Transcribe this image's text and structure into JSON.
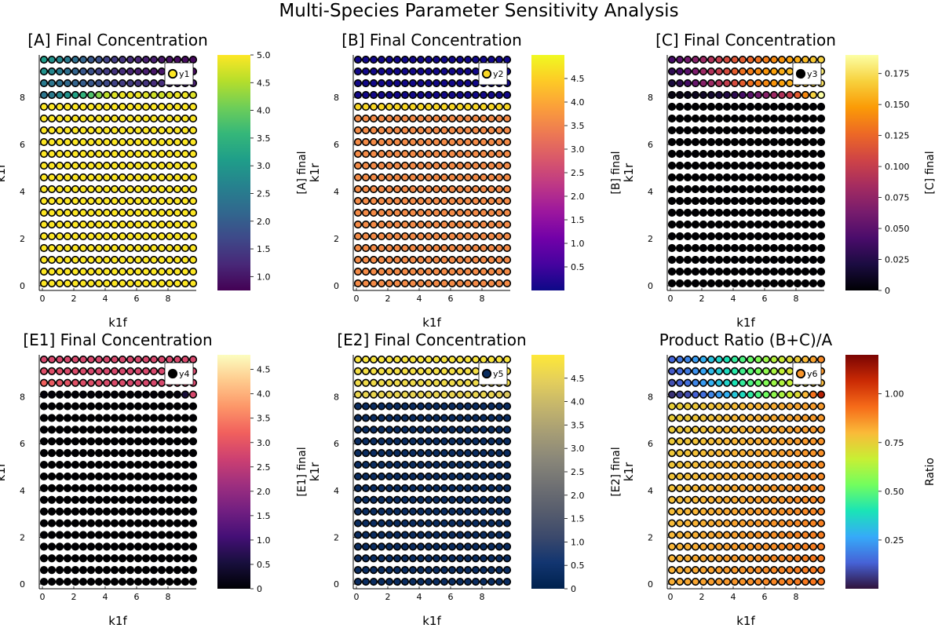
{
  "figure": {
    "title": "Multi-Species Parameter Sensitivity Analysis"
  },
  "chart_data": [
    {
      "type": "scatter",
      "title": "[A] Final Concentration",
      "xlabel": "k1f",
      "ylabel": "k1r",
      "colorbar_label": "[A] final",
      "legend": "y1",
      "colormap": "viridis",
      "clim": [
        0.75,
        5.0
      ],
      "colorbar_ticks": [
        "1.0",
        "1.5",
        "2.0",
        "2.5",
        "3.0",
        "3.5",
        "4.0",
        "4.5",
        "5.0"
      ],
      "colorbar_tick_values": [
        1.0,
        1.5,
        2.0,
        2.5,
        3.0,
        3.5,
        4.0,
        4.5,
        5.0
      ],
      "xlim": [
        -0.2,
        9.8
      ],
      "ylim": [
        -0.2,
        9.8
      ],
      "xticks": [
        "0",
        "2",
        "4",
        "6",
        "8"
      ],
      "yticks": [
        "0",
        "2",
        "4",
        "6",
        "8"
      ],
      "x": [
        0.1,
        0.6,
        1.1,
        1.6,
        2.1,
        2.6,
        3.1,
        3.6,
        4.1,
        4.6,
        5.1,
        5.6,
        6.1,
        6.6,
        7.1,
        7.6,
        8.1,
        8.6,
        9.1,
        9.6
      ],
      "y": [
        0.1,
        0.6,
        1.1,
        1.6,
        2.1,
        2.6,
        3.1,
        3.6,
        4.1,
        4.6,
        5.1,
        5.6,
        6.1,
        6.6,
        7.1,
        7.6,
        8.1,
        8.6,
        9.1,
        9.6
      ],
      "grid_note": "20 x 20 grid of points; rows below y=8.1 are uniformly about 5.0",
      "upper_rows": {
        "y": [
          8.1,
          8.6,
          9.1,
          9.6
        ],
        "values": [
          [
            2.4,
            2.5,
            2.7,
            2.9,
            3.2,
            3.5,
            3.8,
            4.2,
            4.6,
            4.8,
            4.9,
            4.9,
            4.9,
            4.8,
            4.7,
            4.7,
            4.8,
            4.9,
            4.9,
            4.8
          ],
          [
            2.5,
            2.4,
            2.3,
            2.2,
            2.1,
            2.0,
            1.9,
            1.8,
            1.7,
            1.6,
            1.5,
            1.5,
            1.4,
            1.4,
            1.3,
            1.3,
            1.2,
            1.2,
            1.2,
            1.1
          ],
          [
            2.9,
            2.7,
            2.5,
            2.3,
            2.1,
            1.9,
            1.8,
            1.6,
            1.5,
            1.4,
            1.3,
            1.2,
            1.1,
            1.1,
            1.0,
            1.0,
            0.9,
            0.9,
            0.9,
            0.85
          ],
          [
            3.1,
            2.9,
            2.7,
            2.5,
            2.3,
            2.1,
            1.9,
            1.8,
            1.6,
            1.5,
            1.4,
            1.3,
            1.2,
            1.1,
            1.1,
            1.0,
            0.95,
            0.9,
            0.88,
            0.85
          ]
        ]
      },
      "base_value": 5.0
    },
    {
      "type": "scatter",
      "title": "[B] Final Concentration",
      "xlabel": "k1f",
      "ylabel": "k1r",
      "colorbar_label": "[B] final",
      "legend": "y2",
      "colormap": "plasma",
      "clim": [
        0.0,
        5.0
      ],
      "colorbar_ticks": [
        "0.5",
        "1.0",
        "1.5",
        "2.0",
        "2.5",
        "3.0",
        "3.5",
        "4.0",
        "4.5"
      ],
      "colorbar_tick_values": [
        0.5,
        1.0,
        1.5,
        2.0,
        2.5,
        3.0,
        3.5,
        4.0,
        4.5
      ],
      "xlim": [
        -0.2,
        9.8
      ],
      "ylim": [
        -0.2,
        9.8
      ],
      "xticks": [
        "0",
        "2",
        "4",
        "6",
        "8"
      ],
      "yticks": [
        "0",
        "2",
        "4",
        "6",
        "8"
      ],
      "upper_rows": {
        "y": [
          8.1,
          8.6,
          9.1,
          9.6
        ],
        "values": [
          [
            0.05,
            0.05,
            0.05,
            0.05,
            0.05,
            0.05,
            0.05,
            0.05,
            0.05,
            0.05,
            0.05,
            0.05,
            0.05,
            0.05,
            0.05,
            0.05,
            0.05,
            0.05,
            0.05,
            0.05
          ],
          [
            0.05,
            0.05,
            0.05,
            0.05,
            0.05,
            0.05,
            0.05,
            0.05,
            0.05,
            0.05,
            0.05,
            0.05,
            0.05,
            0.05,
            0.05,
            0.05,
            0.05,
            0.05,
            0.05,
            0.05
          ],
          [
            0.05,
            0.05,
            0.05,
            0.05,
            0.05,
            0.05,
            0.05,
            0.05,
            0.05,
            0.05,
            0.05,
            0.05,
            0.05,
            0.05,
            0.05,
            0.05,
            0.05,
            0.05,
            0.05,
            0.05
          ],
          [
            0.05,
            0.05,
            0.05,
            0.05,
            0.05,
            0.05,
            0.05,
            0.05,
            0.05,
            0.05,
            0.05,
            0.05,
            0.05,
            0.05,
            0.05,
            0.05,
            0.05,
            0.05,
            0.05,
            0.05
          ]
        ]
      },
      "base_value": 3.6,
      "top_regular_row_value": 4.6
    },
    {
      "type": "scatter",
      "title": "[C] Final Concentration",
      "xlabel": "k1f",
      "ylabel": "k1r",
      "colorbar_label": "[C] final",
      "legend": "y3",
      "colormap": "inferno",
      "clim": [
        0.0,
        0.19
      ],
      "colorbar_ticks": [
        "0",
        "0.025",
        "0.050",
        "0.075",
        "0.100",
        "0.125",
        "0.150",
        "0.175"
      ],
      "colorbar_tick_values": [
        0,
        0.025,
        0.05,
        0.075,
        0.1,
        0.125,
        0.15,
        0.175
      ],
      "xlim": [
        -0.2,
        9.8
      ],
      "ylim": [
        -0.2,
        9.8
      ],
      "xticks": [
        "0",
        "2",
        "4",
        "6",
        "8"
      ],
      "yticks": [
        "0",
        "2",
        "4",
        "6",
        "8"
      ],
      "upper_rows": {
        "y": [
          8.1,
          8.6,
          9.1,
          9.6
        ],
        "values": [
          [
            0.005,
            0.006,
            0.008,
            0.01,
            0.013,
            0.016,
            0.02,
            0.025,
            0.03,
            0.04,
            0.05,
            0.06,
            0.07,
            0.08,
            0.09,
            0.1,
            0.12,
            0.14,
            0.17,
            0.19
          ],
          [
            0.02,
            0.03,
            0.04,
            0.055,
            0.07,
            0.08,
            0.09,
            0.1,
            0.11,
            0.12,
            0.13,
            0.135,
            0.14,
            0.145,
            0.15,
            0.155,
            0.16,
            0.165,
            0.17,
            0.175
          ],
          [
            0.03,
            0.04,
            0.05,
            0.065,
            0.08,
            0.09,
            0.1,
            0.11,
            0.12,
            0.13,
            0.135,
            0.14,
            0.145,
            0.15,
            0.155,
            0.16,
            0.165,
            0.17,
            0.175,
            0.18
          ],
          [
            0.04,
            0.05,
            0.06,
            0.07,
            0.08,
            0.09,
            0.1,
            0.11,
            0.115,
            0.12,
            0.125,
            0.13,
            0.135,
            0.14,
            0.145,
            0.15,
            0.155,
            0.16,
            0.165,
            0.17
          ]
        ]
      },
      "base_value": 0.0
    },
    {
      "type": "scatter",
      "title": "[E1] Final Concentration",
      "xlabel": "k1f",
      "ylabel": "k1r",
      "colorbar_label": "[E1] final",
      "legend": "y4",
      "colormap": "magma",
      "clim": [
        0.0,
        4.8
      ],
      "colorbar_ticks": [
        "0",
        "0.5",
        "1.0",
        "1.5",
        "2.0",
        "2.5",
        "3.0",
        "3.5",
        "4.0",
        "4.5"
      ],
      "colorbar_tick_values": [
        0,
        0.5,
        1.0,
        1.5,
        2.0,
        2.5,
        3.0,
        3.5,
        4.0,
        4.5
      ],
      "xlim": [
        -0.2,
        9.8
      ],
      "ylim": [
        -0.2,
        9.8
      ],
      "xticks": [
        "0",
        "2",
        "4",
        "6",
        "8"
      ],
      "yticks": [
        "0",
        "2",
        "4",
        "6",
        "8"
      ],
      "upper_rows": {
        "y": [
          8.1,
          8.6,
          9.1,
          9.6
        ],
        "values": [
          [
            0.05,
            0.05,
            0.05,
            0.05,
            0.05,
            0.05,
            0.05,
            0.05,
            0.05,
            0.05,
            0.05,
            0.05,
            0.05,
            0.05,
            0.05,
            0.05,
            0.05,
            0.1,
            0.5,
            2.8
          ],
          [
            3.2,
            3.1,
            3.0,
            3.0,
            2.95,
            2.9,
            2.9,
            2.9,
            2.85,
            2.85,
            2.85,
            2.8,
            2.8,
            2.8,
            2.8,
            2.8,
            2.8,
            2.8,
            2.8,
            2.8
          ],
          [
            2.9,
            2.9,
            2.9,
            2.85,
            2.85,
            2.85,
            2.8,
            2.8,
            2.8,
            2.8,
            2.8,
            2.8,
            2.8,
            2.8,
            2.8,
            2.8,
            2.8,
            2.8,
            2.8,
            2.8
          ],
          [
            2.8,
            2.8,
            2.8,
            2.8,
            2.8,
            2.8,
            2.8,
            2.8,
            2.8,
            2.8,
            2.8,
            2.8,
            2.8,
            2.8,
            2.8,
            2.8,
            2.8,
            2.8,
            2.8,
            2.8
          ]
        ]
      },
      "base_value": 0.0
    },
    {
      "type": "scatter",
      "title": "[E2] Final Concentration",
      "xlabel": "k1f",
      "ylabel": "k1r",
      "colorbar_label": "[E2] final",
      "legend": "y5",
      "colormap": "cividis",
      "clim": [
        0.0,
        5.0
      ],
      "colorbar_ticks": [
        "0",
        "0.5",
        "1.0",
        "1.5",
        "2.0",
        "2.5",
        "3.0",
        "3.5",
        "4.0",
        "4.5"
      ],
      "colorbar_tick_values": [
        0,
        0.5,
        1.0,
        1.5,
        2.0,
        2.5,
        3.0,
        3.5,
        4.0,
        4.5
      ],
      "xlim": [
        -0.2,
        9.8
      ],
      "ylim": [
        -0.2,
        9.8
      ],
      "xticks": [
        "0",
        "2",
        "4",
        "6",
        "8"
      ],
      "yticks": [
        "0",
        "2",
        "4",
        "6",
        "8"
      ],
      "upper_rows": {
        "y": [
          8.1,
          8.6,
          9.1,
          9.6
        ],
        "values": [
          [
            4.6,
            4.6,
            4.6,
            4.6,
            4.6,
            4.6,
            4.6,
            4.6,
            4.6,
            4.6,
            4.6,
            4.6,
            4.6,
            4.6,
            4.6,
            4.6,
            4.6,
            4.6,
            4.5,
            4.3
          ],
          [
            4.7,
            4.7,
            4.7,
            4.7,
            4.7,
            4.7,
            4.7,
            4.7,
            4.7,
            4.7,
            4.7,
            4.7,
            4.7,
            4.7,
            4.7,
            4.7,
            4.7,
            4.7,
            4.7,
            4.7
          ],
          [
            4.8,
            4.8,
            4.8,
            4.8,
            4.8,
            4.8,
            4.8,
            4.8,
            4.8,
            4.8,
            4.8,
            4.8,
            4.8,
            4.8,
            4.8,
            4.8,
            4.8,
            4.8,
            4.8,
            4.8
          ],
          [
            4.9,
            4.9,
            4.9,
            4.9,
            4.9,
            4.9,
            4.9,
            4.9,
            4.9,
            4.9,
            4.9,
            4.9,
            4.9,
            4.9,
            4.9,
            4.9,
            4.9,
            4.9,
            4.9,
            4.9
          ]
        ]
      },
      "base_value": 0.3
    },
    {
      "type": "scatter",
      "title": "Product Ratio (B+C)/A",
      "xlabel": "k1f",
      "ylabel": "k1r",
      "colorbar_label": "Ratio",
      "legend": "y6",
      "colormap": "turbo",
      "clim": [
        0.0,
        1.2
      ],
      "colorbar_ticks": [
        "0.25",
        "0.50",
        "0.75",
        "1.00"
      ],
      "colorbar_tick_values": [
        0.25,
        0.5,
        0.75,
        1.0
      ],
      "xlim": [
        -0.2,
        9.8
      ],
      "ylim": [
        -0.2,
        9.8
      ],
      "xticks": [
        "0",
        "2",
        "4",
        "6",
        "8"
      ],
      "yticks": [
        "0",
        "2",
        "4",
        "6",
        "8"
      ],
      "upper_rows": {
        "y": [
          8.1,
          8.6,
          9.1,
          9.6
        ],
        "values": [
          [
            0.05,
            0.08,
            0.1,
            0.13,
            0.16,
            0.2,
            0.24,
            0.28,
            0.33,
            0.38,
            0.43,
            0.48,
            0.53,
            0.58,
            0.62,
            0.67,
            0.72,
            0.8,
            0.92,
            1.1
          ],
          [
            0.1,
            0.13,
            0.16,
            0.2,
            0.24,
            0.28,
            0.32,
            0.36,
            0.4,
            0.44,
            0.48,
            0.52,
            0.56,
            0.6,
            0.63,
            0.66,
            0.7,
            0.73,
            0.76,
            0.8
          ],
          [
            0.12,
            0.15,
            0.18,
            0.22,
            0.26,
            0.3,
            0.34,
            0.38,
            0.42,
            0.46,
            0.5,
            0.54,
            0.58,
            0.62,
            0.66,
            0.7,
            0.74,
            0.78,
            0.82,
            0.86
          ],
          [
            0.14,
            0.17,
            0.2,
            0.24,
            0.28,
            0.32,
            0.36,
            0.4,
            0.44,
            0.48,
            0.52,
            0.56,
            0.6,
            0.64,
            0.68,
            0.72,
            0.76,
            0.8,
            0.84,
            0.88
          ]
        ]
      },
      "base_value": 0.8,
      "lower_gradient": [
        0.75,
        0.92
      ]
    }
  ]
}
